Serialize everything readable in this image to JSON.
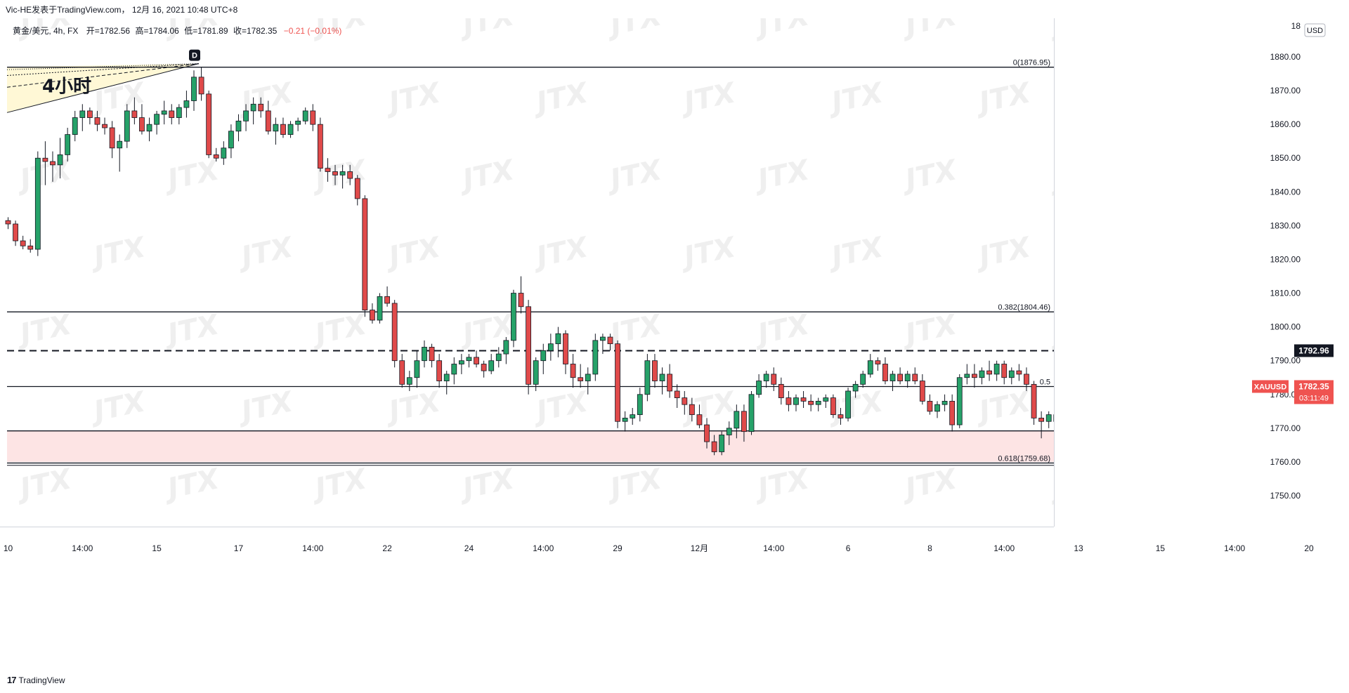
{
  "header": {
    "title": "Vic-HE发表于TradingView.com， 12月 16, 2021 10:48 UTC+8"
  },
  "symbol_info": {
    "name": "黄金/美元, 4h, FX",
    "open_label": "开",
    "open": "=1782.56",
    "high_label": "高",
    "high": "=1784.06",
    "low_label": "低",
    "low": "=1781.89",
    "close_label": "收",
    "close": "=1782.35",
    "change": "−0.21 (−0.01%)"
  },
  "footer": {
    "logo": "17",
    "brand": "TradingView"
  },
  "colors": {
    "up": "#26a269",
    "down": "#e04a4a",
    "zone": "#fde4e4",
    "price_tag": "#ef5350"
  },
  "chart_data": {
    "type": "candlestick",
    "symbol": "XAUUSD",
    "currency": "USD",
    "ylim": [
      1740,
      1886
    ],
    "y_ticks": [
      1750,
      1760,
      1770,
      1780,
      1790,
      1800,
      1810,
      1820,
      1830,
      1840,
      1850,
      1860,
      1870,
      1880
    ],
    "top_tick_partial": "18",
    "x_ticks": [
      {
        "label": "10",
        "i": 0
      },
      {
        "label": "14:00",
        "i": 10
      },
      {
        "label": "15",
        "i": 20
      },
      {
        "label": "17",
        "i": 31
      },
      {
        "label": "14:00",
        "i": 41
      },
      {
        "label": "22",
        "i": 51
      },
      {
        "label": "24",
        "i": 62
      },
      {
        "label": "14:00",
        "i": 72
      },
      {
        "label": "29",
        "i": 82
      },
      {
        "label": "12月",
        "i": 93
      },
      {
        "label": "14:00",
        "i": 103
      },
      {
        "label": "6",
        "i": 113
      },
      {
        "label": "8",
        "i": 124
      },
      {
        "label": "14:00",
        "i": 134
      },
      {
        "label": "13",
        "i": 144
      },
      {
        "label": "15",
        "i": 155
      },
      {
        "label": "14:00",
        "i": 165
      },
      {
        "label": "20",
        "i": 175
      }
    ],
    "candles": [
      [
        1831.5,
        1832.5,
        1829,
        1830.5
      ],
      [
        1830.5,
        1831.5,
        1824,
        1825.5
      ],
      [
        1825.5,
        1827,
        1823,
        1824
      ],
      [
        1824,
        1826,
        1822,
        1823
      ],
      [
        1823,
        1852,
        1821,
        1850
      ],
      [
        1850,
        1855,
        1842,
        1849
      ],
      [
        1849,
        1852,
        1843,
        1848
      ],
      [
        1848,
        1856,
        1844,
        1851
      ],
      [
        1851,
        1859,
        1849,
        1857
      ],
      [
        1857,
        1864,
        1855,
        1862
      ],
      [
        1862,
        1866,
        1858,
        1864
      ],
      [
        1864,
        1865,
        1860,
        1862
      ],
      [
        1862,
        1864,
        1858,
        1860
      ],
      [
        1860,
        1862,
        1857,
        1859
      ],
      [
        1859,
        1861,
        1850,
        1853
      ],
      [
        1853,
        1857,
        1846,
        1855
      ],
      [
        1855,
        1866,
        1853,
        1864
      ],
      [
        1864,
        1868,
        1860,
        1862
      ],
      [
        1862,
        1866,
        1857,
        1858
      ],
      [
        1858,
        1862,
        1855,
        1860
      ],
      [
        1860,
        1864,
        1857,
        1863
      ],
      [
        1863,
        1867,
        1860,
        1864
      ],
      [
        1864,
        1866,
        1860,
        1862
      ],
      [
        1862,
        1866,
        1860,
        1865
      ],
      [
        1865,
        1870,
        1862,
        1867
      ],
      [
        1867,
        1876,
        1864,
        1874
      ],
      [
        1874,
        1877,
        1867,
        1869
      ],
      [
        1869,
        1870,
        1850,
        1851
      ],
      [
        1851,
        1853,
        1849,
        1850
      ],
      [
        1850,
        1855,
        1848,
        1853
      ],
      [
        1853,
        1860,
        1850,
        1858
      ],
      [
        1858,
        1863,
        1855,
        1861
      ],
      [
        1861,
        1866,
        1858,
        1864
      ],
      [
        1864,
        1868,
        1860,
        1866
      ],
      [
        1866,
        1868,
        1862,
        1864
      ],
      [
        1864,
        1867,
        1857,
        1858
      ],
      [
        1858,
        1862,
        1854,
        1860
      ],
      [
        1860,
        1862,
        1856,
        1857
      ],
      [
        1857,
        1861,
        1856,
        1860
      ],
      [
        1860,
        1862,
        1858,
        1861
      ],
      [
        1861,
        1865,
        1860,
        1864
      ],
      [
        1864,
        1866,
        1858,
        1860
      ],
      [
        1860,
        1862,
        1846,
        1847
      ],
      [
        1847,
        1850,
        1843,
        1846
      ],
      [
        1846,
        1848,
        1842,
        1845
      ],
      [
        1845,
        1848,
        1841,
        1846
      ],
      [
        1846,
        1848,
        1842,
        1844
      ],
      [
        1844,
        1845,
        1836,
        1838
      ],
      [
        1838,
        1839,
        1803,
        1805
      ],
      [
        1805,
        1807,
        1801,
        1802
      ],
      [
        1802,
        1810,
        1801,
        1809
      ],
      [
        1809,
        1812,
        1806,
        1807
      ],
      [
        1807,
        1808,
        1788,
        1790
      ],
      [
        1790,
        1792,
        1782,
        1783
      ],
      [
        1783,
        1787,
        1781,
        1785
      ],
      [
        1785,
        1793,
        1782,
        1790
      ],
      [
        1790,
        1796,
        1788,
        1794
      ],
      [
        1794,
        1795,
        1788,
        1790
      ],
      [
        1790,
        1792,
        1782,
        1784
      ],
      [
        1784,
        1787,
        1780,
        1786
      ],
      [
        1786,
        1791,
        1783,
        1789
      ],
      [
        1789,
        1792,
        1786,
        1790
      ],
      [
        1790,
        1792,
        1788,
        1791
      ],
      [
        1791,
        1793,
        1788,
        1789
      ],
      [
        1789,
        1790,
        1785,
        1787
      ],
      [
        1787,
        1792,
        1786,
        1790
      ],
      [
        1790,
        1794,
        1788,
        1792
      ],
      [
        1792,
        1797,
        1789,
        1796
      ],
      [
        1796,
        1811,
        1794,
        1810
      ],
      [
        1810,
        1815,
        1804,
        1806
      ],
      [
        1806,
        1808,
        1780,
        1783
      ],
      [
        1783,
        1791,
        1781,
        1790
      ],
      [
        1790,
        1795,
        1786,
        1793
      ],
      [
        1793,
        1798,
        1790,
        1795
      ],
      [
        1795,
        1800,
        1791,
        1798
      ],
      [
        1798,
        1799,
        1786,
        1789
      ],
      [
        1789,
        1792,
        1782,
        1785
      ],
      [
        1785,
        1789,
        1782,
        1784
      ],
      [
        1784,
        1788,
        1780,
        1786
      ],
      [
        1786,
        1798,
        1784,
        1796
      ],
      [
        1796,
        1798,
        1792,
        1797
      ],
      [
        1797,
        1798,
        1793,
        1795
      ],
      [
        1795,
        1796,
        1770,
        1772
      ],
      [
        1772,
        1775,
        1769,
        1773
      ],
      [
        1773,
        1776,
        1771,
        1774
      ],
      [
        1774,
        1782,
        1772,
        1780
      ],
      [
        1780,
        1792,
        1778,
        1790
      ],
      [
        1790,
        1792,
        1782,
        1784
      ],
      [
        1784,
        1788,
        1780,
        1786
      ],
      [
        1786,
        1789,
        1779,
        1781
      ],
      [
        1781,
        1783,
        1776,
        1779
      ],
      [
        1779,
        1781,
        1774,
        1777
      ],
      [
        1777,
        1779,
        1772,
        1774
      ],
      [
        1774,
        1777,
        1770,
        1771
      ],
      [
        1771,
        1773,
        1764,
        1766
      ],
      [
        1766,
        1768,
        1762,
        1763
      ],
      [
        1763,
        1769,
        1762,
        1768
      ],
      [
        1768,
        1772,
        1765,
        1770
      ],
      [
        1770,
        1777,
        1767,
        1775
      ],
      [
        1775,
        1777,
        1766,
        1769
      ],
      [
        1769,
        1781,
        1768,
        1780
      ],
      [
        1780,
        1786,
        1779,
        1784
      ],
      [
        1784,
        1787,
        1782,
        1786
      ],
      [
        1786,
        1788,
        1781,
        1783
      ],
      [
        1783,
        1785,
        1777,
        1779
      ],
      [
        1779,
        1781,
        1775,
        1777
      ],
      [
        1777,
        1780,
        1775,
        1779
      ],
      [
        1779,
        1781,
        1776,
        1778
      ],
      [
        1778,
        1780,
        1775,
        1777
      ],
      [
        1777,
        1779,
        1775,
        1778
      ],
      [
        1778,
        1780,
        1776,
        1779
      ],
      [
        1779,
        1780,
        1773,
        1774
      ],
      [
        1774,
        1776,
        1771,
        1773
      ],
      [
        1773,
        1782,
        1772,
        1781
      ],
      [
        1781,
        1784,
        1779,
        1783
      ],
      [
        1783,
        1787,
        1782,
        1786
      ],
      [
        1786,
        1792,
        1785,
        1790
      ],
      [
        1790,
        1791,
        1787,
        1789
      ],
      [
        1789,
        1791,
        1783,
        1784
      ],
      [
        1784,
        1787,
        1781,
        1786
      ],
      [
        1786,
        1788,
        1783,
        1784
      ],
      [
        1784,
        1787,
        1782,
        1786
      ],
      [
        1786,
        1788,
        1783,
        1784
      ],
      [
        1784,
        1786,
        1777,
        1778
      ],
      [
        1778,
        1780,
        1774,
        1775
      ],
      [
        1775,
        1778,
        1773,
        1777
      ],
      [
        1777,
        1780,
        1775,
        1778
      ],
      [
        1778,
        1780,
        1769,
        1771
      ],
      [
        1771,
        1786,
        1770,
        1785
      ],
      [
        1785,
        1789,
        1783,
        1786
      ],
      [
        1786,
        1789,
        1782,
        1785
      ],
      [
        1785,
        1788,
        1783,
        1787
      ],
      [
        1787,
        1790,
        1784,
        1786
      ],
      [
        1786,
        1790,
        1784,
        1789
      ],
      [
        1789,
        1790,
        1783,
        1785
      ],
      [
        1785,
        1788,
        1783,
        1787
      ],
      [
        1787,
        1789,
        1784,
        1786
      ],
      [
        1786,
        1788,
        1781,
        1783
      ],
      [
        1783,
        1784,
        1771,
        1773
      ],
      [
        1773,
        1775,
        1767,
        1772
      ],
      [
        1772,
        1775,
        1770,
        1774
      ],
      [
        1774,
        1776,
        1771,
        1772
      ],
      [
        1772,
        1773,
        1769,
        1770
      ],
      [
        1770,
        1774,
        1768,
        1773
      ],
      [
        1773,
        1775,
        1766,
        1768
      ],
      [
        1768,
        1770,
        1763,
        1765
      ],
      [
        1765,
        1776,
        1753,
        1775
      ],
      [
        1775,
        1784,
        1774,
        1781
      ],
      [
        1781,
        1783,
        1779,
        1782
      ],
      [
        1782.56,
        1784.06,
        1781.89,
        1782.35
      ]
    ],
    "horizontal_lines": [
      {
        "y": 1876.95,
        "style": "solid",
        "label": "0(1876.95)"
      },
      {
        "y": 1804.46,
        "style": "solid",
        "label": "0.382(1804.46)"
      },
      {
        "y": 1792.96,
        "style": "dashed",
        "tag": "1792.96"
      },
      {
        "y": 1782.35,
        "style": "solid",
        "label": "0.5"
      },
      {
        "y": 1769.2,
        "style": "solid",
        "label": ""
      },
      {
        "y": 1759.68,
        "style": "solid",
        "label": "0.618(1759.68)"
      }
    ],
    "zone": {
      "from": 1760,
      "to": 1769.2
    },
    "price_tag": {
      "symbol": "XAUUSD",
      "price": "1782.35",
      "countdown": "03:11:49"
    },
    "annotations": {
      "timeframe_label": "4小时",
      "marker": "D"
    },
    "watermark": "JTX"
  }
}
